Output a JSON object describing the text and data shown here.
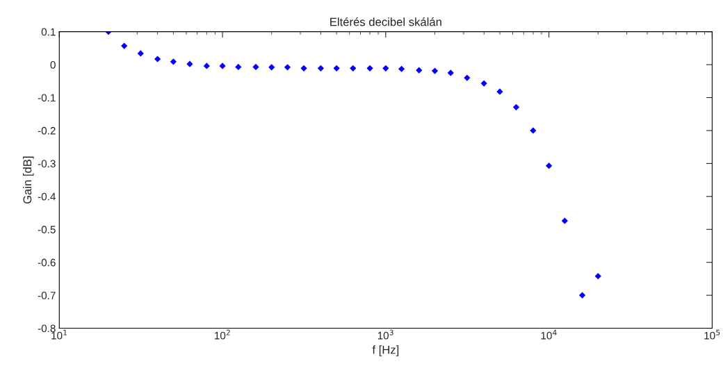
{
  "chart_data": {
    "type": "scatter",
    "title": "Eltérés decibel skálán",
    "xlabel": "f [Hz]",
    "ylabel": "Gain [dB]",
    "log": "x",
    "marker": "diamond",
    "grid": false,
    "x": [
      20,
      25,
      31.5,
      40,
      50,
      63,
      80,
      100,
      125,
      160,
      200,
      250,
      315,
      400,
      500,
      630,
      800,
      1000,
      1250,
      1600,
      2000,
      2500,
      3150,
      4000,
      5000,
      6300,
      8000,
      10000,
      12500,
      16000,
      20000
    ],
    "series": [
      {
        "color": "#0000ff",
        "values": [
          0.1,
          0.057,
          0.034,
          0.017,
          0.009,
          0.002,
          -0.004,
          -0.004,
          -0.007,
          -0.007,
          -0.008,
          -0.008,
          -0.011,
          -0.011,
          -0.011,
          -0.011,
          -0.011,
          -0.011,
          -0.013,
          -0.017,
          -0.019,
          -0.025,
          -0.04,
          -0.057,
          -0.082,
          -0.129,
          -0.2,
          -0.307,
          -0.474,
          -0.7,
          -0.642
        ]
      }
    ],
    "xlim": [
      10,
      100000
    ],
    "xticks": [
      {
        "value": 10,
        "label": "10$^{1}$"
      },
      {
        "value": 100,
        "label": "10$^{2}$"
      },
      {
        "value": 1000,
        "label": "10$^{3}$"
      },
      {
        "value": 10000,
        "label": "10$^{4}$"
      },
      {
        "value": 100000,
        "label": "10$^{5}$"
      }
    ],
    "ylim": [
      -0.8,
      0.1
    ],
    "yticks": [
      -0.8,
      -0.7,
      -0.6,
      -0.5,
      -0.4,
      -0.3,
      -0.2,
      -0.1,
      0,
      0.1
    ]
  }
}
